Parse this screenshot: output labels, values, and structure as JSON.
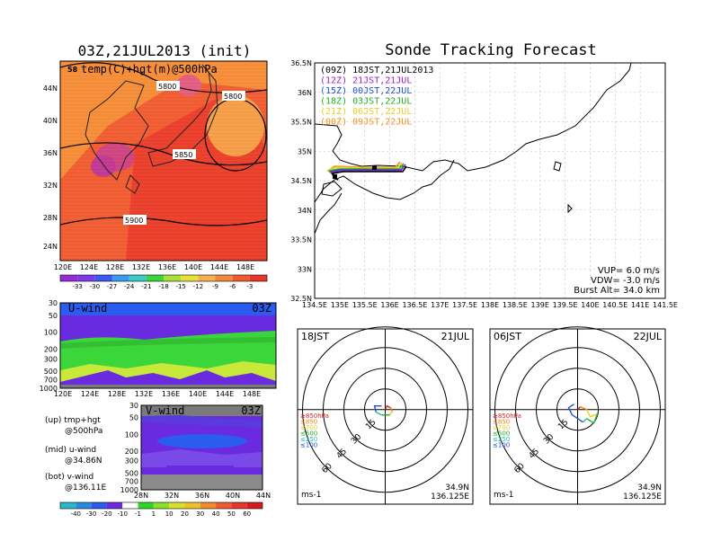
{
  "map_panel": {
    "title": "03Z,21JUL2013 (init)",
    "field_label": "temp(C)+hgt(m)@500hPa",
    "contours": [
      "5800",
      "5800",
      "5850",
      "5900",
      "58"
    ],
    "lon_ticks": [
      "120E",
      "124E",
      "128E",
      "132E",
      "136E",
      "140E",
      "144E",
      "148E"
    ],
    "lat_ticks": [
      "44N",
      "40N",
      "36N",
      "32N",
      "28N",
      "24N"
    ],
    "colorbar": [
      "-33",
      "-30",
      "-27",
      "-24",
      "-21",
      "-18",
      "-15",
      "-12",
      "-9",
      "-6",
      "-3"
    ]
  },
  "uwind_panel": {
    "label": "U-wind",
    "time": "03Z",
    "p_ticks": [
      "30",
      "50",
      "100",
      "200",
      "300",
      "500",
      "700",
      "1000"
    ],
    "lon_ticks": [
      "120E",
      "124E",
      "128E",
      "132E",
      "136E",
      "140E",
      "144E",
      "148E"
    ]
  },
  "vwind_panel": {
    "label": "V-wind",
    "time": "03Z",
    "p_ticks": [
      "30",
      "50",
      "100",
      "200",
      "300",
      "500",
      "700",
      "1000"
    ],
    "lat_ticks": [
      "28N",
      "32N",
      "36N",
      "40N",
      "44N"
    ],
    "colorbar": [
      "-40",
      "-30",
      "-20",
      "-10",
      "-1",
      "1",
      "10",
      "20",
      "30",
      "40",
      "50",
      "60"
    ]
  },
  "legend_notes": [
    {
      "line1": "(up) tmp+hgt",
      "line2": "@500hPa"
    },
    {
      "line1": "(mid) u-wind",
      "line2": "@34.86N"
    },
    {
      "line1": "(bot) v-wind",
      "line2": "@136.11E"
    }
  ],
  "track_panel": {
    "title": "Sonde Tracking Forecast",
    "lat_ticks": [
      "36.5N",
      "36N",
      "35.5N",
      "35N",
      "34.5N",
      "34N",
      "33.5N",
      "33N",
      "32.5N"
    ],
    "lon_ticks": [
      "134.5E",
      "135E",
      "135.5E",
      "136E",
      "136.5E",
      "137E",
      "137.5E",
      "138E",
      "138.5E",
      "139E",
      "139.5E",
      "140E",
      "140.5E",
      "141E",
      "141.5E"
    ],
    "runs": [
      {
        "label": "(09Z)  18JST,21JUL2013",
        "color": "#000000"
      },
      {
        "label": "(12Z)  21JST,21JUL",
        "color": "#a020c0"
      },
      {
        "label": "(15Z)  00JST,22JUL",
        "color": "#2050d0"
      },
      {
        "label": "(18Z)  03JST,22JUL",
        "color": "#20b020"
      },
      {
        "label": "(21Z)  06JST,22JUL",
        "color": "#e8d020"
      },
      {
        "label": "(00Z)  09JST,22JUL",
        "color": "#f09020"
      }
    ],
    "vup": "VUP= 6.0 m/s",
    "vdw": "VDW= -3.0 m/s",
    "burst": "Burst Alt= 34.0 km"
  },
  "hodo_left": {
    "time": "18JST",
    "date": "21JUL",
    "rings": [
      "15",
      "30",
      "45",
      "60"
    ],
    "levels": [
      {
        "label": "≥850hPa",
        "color": "#e02020"
      },
      {
        "label": "≤850",
        "color": "#f08020"
      },
      {
        "label": "≤700",
        "color": "#e8d020"
      },
      {
        "label": "≤500",
        "color": "#20b020"
      },
      {
        "label": "≤250",
        "color": "#20c0c0"
      },
      {
        "label": "≤100",
        "color": "#2050d0"
      }
    ],
    "unit": "ms-1",
    "lat": "34.9N",
    "lon": "136.125E"
  },
  "hodo_right": {
    "time": "06JST",
    "date": "22JUL",
    "rings": [
      "15",
      "30",
      "45",
      "60"
    ],
    "levels": [
      {
        "label": "≥850hPa",
        "color": "#e02020"
      },
      {
        "label": "≤850",
        "color": "#f08020"
      },
      {
        "label": "≤700",
        "color": "#e8d020"
      },
      {
        "label": "≤500",
        "color": "#20b020"
      },
      {
        "label": "≤250",
        "color": "#20c0c0"
      },
      {
        "label": "≤100",
        "color": "#2050d0"
      }
    ],
    "unit": "ms-1",
    "lat": "34.9N",
    "lon": "136.125E"
  }
}
